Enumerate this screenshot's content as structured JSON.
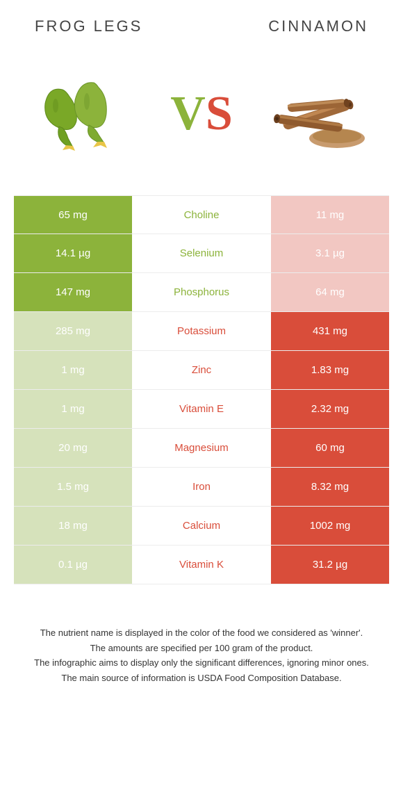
{
  "header": {
    "left_title": "Frog legs",
    "right_title": "Cinnamon"
  },
  "vs_text": {
    "v": "V",
    "s": "S"
  },
  "colors": {
    "left_win": "#8cb33b",
    "left_lose": "#d6e2bb",
    "right_win": "#d94d3a",
    "right_lose": "#f2c7c2",
    "text_green": "#8cb33b",
    "text_red": "#d94d3a"
  },
  "rows": [
    {
      "left": "65 mg",
      "label": "Choline",
      "right": "11 mg",
      "winner": "left"
    },
    {
      "left": "14.1 µg",
      "label": "Selenium",
      "right": "3.1 µg",
      "winner": "left"
    },
    {
      "left": "147 mg",
      "label": "Phosphorus",
      "right": "64 mg",
      "winner": "left"
    },
    {
      "left": "285 mg",
      "label": "Potassium",
      "right": "431 mg",
      "winner": "right"
    },
    {
      "left": "1 mg",
      "label": "Zinc",
      "right": "1.83 mg",
      "winner": "right"
    },
    {
      "left": "1 mg",
      "label": "Vitamin E",
      "right": "2.32 mg",
      "winner": "right"
    },
    {
      "left": "20 mg",
      "label": "Magnesium",
      "right": "60 mg",
      "winner": "right"
    },
    {
      "left": "1.5 mg",
      "label": "Iron",
      "right": "8.32 mg",
      "winner": "right"
    },
    {
      "left": "18 mg",
      "label": "Calcium",
      "right": "1002 mg",
      "winner": "right"
    },
    {
      "left": "0.1 µg",
      "label": "Vitamin K",
      "right": "31.2 µg",
      "winner": "right"
    }
  ],
  "footnotes": [
    "The nutrient name is displayed in the color of the food we considered as 'winner'.",
    "The amounts are specified per 100 gram of the product.",
    "The infographic aims to display only the significant differences, ignoring minor ones.",
    "The main source of information is USDA Food Composition Database."
  ]
}
